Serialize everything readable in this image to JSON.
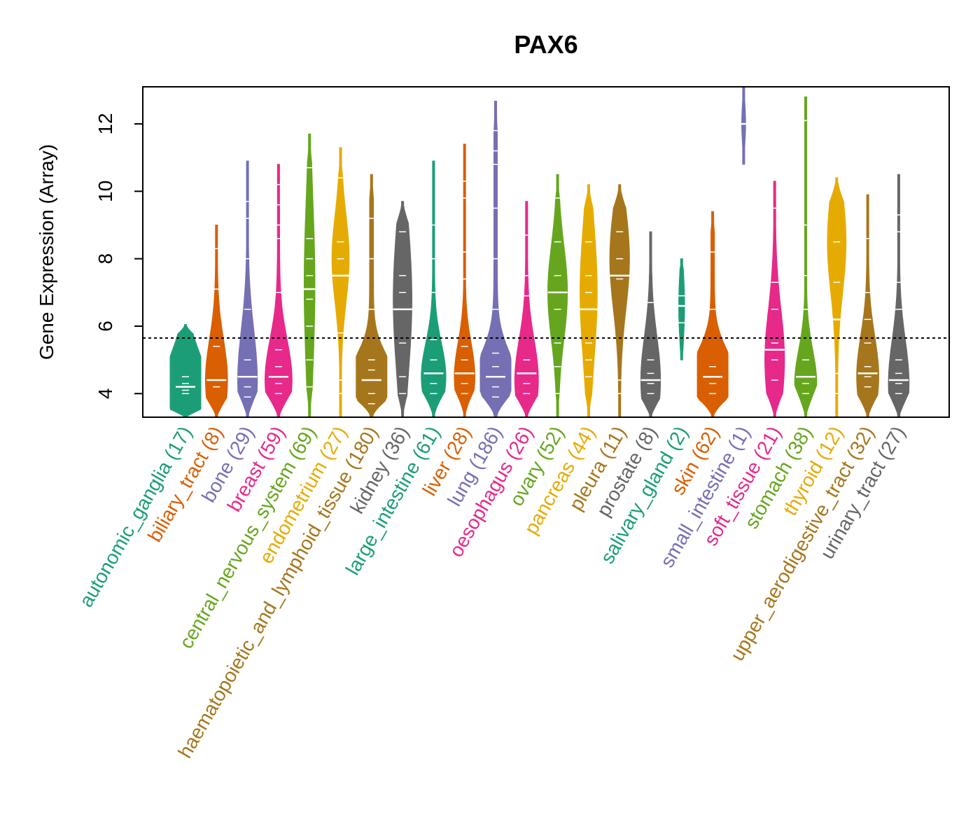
{
  "chart_data": {
    "type": "violin",
    "title": "PAX6",
    "xlabel": "",
    "ylabel": "Gene Expression (Array)",
    "ylim": [
      3.3,
      13.1
    ],
    "yticks": [
      4,
      6,
      8,
      10,
      12
    ],
    "reference_line": 5.65,
    "categories": [
      {
        "name": "autonomic_ganglia",
        "count": "(17)",
        "color": "#1b9e77",
        "median": 4.2,
        "min": 3.3,
        "max": 6.05,
        "mode": 4.2,
        "spread": 1.0,
        "width": 0.9,
        "marks": [
          4.0,
          4.1,
          4.2,
          4.2,
          4.3,
          4.5
        ]
      },
      {
        "name": "biliary_tract",
        "count": "(8)",
        "color": "#d95f02",
        "median": 4.4,
        "min": 3.3,
        "max": 9.0,
        "mode": 4.4,
        "spread": 1.2,
        "width": 0.45,
        "marks": [
          4.2,
          4.4,
          5.4,
          7.1,
          8.3
        ]
      },
      {
        "name": "bone",
        "count": "(29)",
        "color": "#7570b3",
        "median": 4.5,
        "min": 3.3,
        "max": 10.9,
        "mode": 4.4,
        "spread": 1.5,
        "width": 0.4,
        "marks": [
          3.9,
          4.2,
          4.5,
          5.0,
          6.5,
          8.0,
          9.2,
          9.7
        ]
      },
      {
        "name": "breast",
        "count": "(59)",
        "color": "#e7298a",
        "median": 4.5,
        "min": 3.3,
        "max": 10.8,
        "mode": 4.4,
        "spread": 1.2,
        "width": 0.55,
        "marks": [
          4.0,
          4.3,
          4.5,
          4.8,
          5.3,
          7.0,
          8.6,
          9.0,
          9.6,
          10.2
        ]
      },
      {
        "name": "central_nervous_system",
        "count": "(69)",
        "color": "#66a61e",
        "median": 7.1,
        "min": 3.3,
        "max": 11.7,
        "mode": 7.2,
        "spread": 2.5,
        "width": 0.22,
        "marks": [
          4.2,
          5.0,
          6.0,
          6.8,
          7.1,
          7.5,
          8.0,
          8.6,
          10.7
        ]
      },
      {
        "name": "endometrium",
        "count": "(27)",
        "color": "#e6ab02",
        "median": 7.5,
        "min": 3.3,
        "max": 11.3,
        "mode": 8.0,
        "spread": 1.3,
        "width": 0.35,
        "marks": [
          4.0,
          4.4,
          5.8,
          7.5,
          8.0,
          8.5,
          10.4
        ]
      },
      {
        "name": "haematopoietic_and_lymphoid_tissue",
        "count": "(180)",
        "color": "#a6761d",
        "median": 4.4,
        "min": 3.3,
        "max": 10.5,
        "mode": 4.3,
        "spread": 0.8,
        "width": 1.0,
        "marks": [
          3.7,
          4.0,
          4.4,
          4.7,
          5.0,
          6.5,
          8.0,
          9.2
        ]
      },
      {
        "name": "kidney",
        "count": "(36)",
        "color": "#666666",
        "median": 6.5,
        "min": 3.3,
        "max": 9.7,
        "mode": 6.8,
        "spread": 2.2,
        "width": 0.38,
        "marks": [
          4.0,
          4.5,
          5.5,
          6.5,
          7.0,
          7.5,
          8.8
        ]
      },
      {
        "name": "large_intestine",
        "count": "(61)",
        "color": "#1b9e77",
        "median": 4.6,
        "min": 3.3,
        "max": 10.9,
        "mode": 4.5,
        "spread": 1.0,
        "width": 0.5,
        "marks": [
          4.0,
          4.3,
          4.6,
          5.0,
          5.6,
          7.0,
          8.0,
          9.0
        ]
      },
      {
        "name": "liver",
        "count": "(28)",
        "color": "#d95f02",
        "median": 4.6,
        "min": 3.3,
        "max": 11.4,
        "mode": 4.5,
        "spread": 1.0,
        "width": 0.42,
        "marks": [
          4.0,
          4.3,
          4.6,
          5.0,
          5.4,
          7.4,
          8.2,
          9.8,
          10.3
        ]
      },
      {
        "name": "lung",
        "count": "(186)",
        "color": "#7570b3",
        "median": 4.5,
        "min": 3.3,
        "max": 12.7,
        "mode": 4.3,
        "spread": 0.9,
        "width": 0.9,
        "marks": [
          3.9,
          4.2,
          4.5,
          4.8,
          5.2,
          6.5,
          8.0,
          9.5,
          10.8,
          11.2,
          11.8,
          12.7
        ]
      },
      {
        "name": "oesophagus",
        "count": "(26)",
        "color": "#e7298a",
        "median": 4.6,
        "min": 3.3,
        "max": 9.7,
        "mode": 4.4,
        "spread": 1.2,
        "width": 0.48,
        "marks": [
          4.0,
          4.3,
          4.6,
          5.0,
          6.9,
          7.5,
          8.7
        ]
      },
      {
        "name": "ovary",
        "count": "(52)",
        "color": "#66a61e",
        "median": 7.0,
        "min": 3.3,
        "max": 10.5,
        "mode": 7.0,
        "spread": 1.4,
        "width": 0.4,
        "marks": [
          4.0,
          4.8,
          5.5,
          6.5,
          7.0,
          7.5,
          8.5,
          9.8
        ]
      },
      {
        "name": "pancreas",
        "count": "(44)",
        "color": "#e6ab02",
        "median": 6.5,
        "min": 3.3,
        "max": 10.2,
        "mode": 7.0,
        "spread": 2.0,
        "width": 0.35,
        "marks": [
          4.5,
          5.0,
          5.5,
          6.5,
          7.0,
          7.5,
          8.5
        ]
      },
      {
        "name": "pleura",
        "count": "(11)",
        "color": "#a6761d",
        "median": 7.5,
        "min": 3.3,
        "max": 10.2,
        "mode": 8.0,
        "spread": 1.5,
        "width": 0.4,
        "marks": [
          4.0,
          4.4,
          7.4,
          8.0,
          8.8
        ]
      },
      {
        "name": "prostate",
        "count": "(8)",
        "color": "#666666",
        "median": 4.4,
        "min": 3.3,
        "max": 8.8,
        "mode": 4.4,
        "spread": 1.3,
        "width": 0.4,
        "marks": [
          4.0,
          4.3,
          4.6,
          5.0,
          6.7
        ]
      },
      {
        "name": "salivary_gland",
        "count": "(2)",
        "color": "#1b9e77",
        "median": 6.6,
        "min": 5.0,
        "max": 8.0,
        "mode": 6.6,
        "spread": 1.0,
        "width": 0.12,
        "marks": [
          6.1,
          6.9
        ]
      },
      {
        "name": "skin",
        "count": "(62)",
        "color": "#d95f02",
        "median": 4.5,
        "min": 3.3,
        "max": 9.4,
        "mode": 4.5,
        "spread": 0.8,
        "width": 0.9,
        "marks": [
          4.0,
          4.3,
          4.5,
          4.8,
          6.5,
          8.2
        ]
      },
      {
        "name": "small_intestine",
        "count": "(1)",
        "color": "#7570b3",
        "median": 12.0,
        "min": 10.8,
        "max": 13.1,
        "mode": 12.0,
        "spread": 0.6,
        "width": 0.08,
        "marks": [
          12.0
        ]
      },
      {
        "name": "soft_tissue",
        "count": "(21)",
        "color": "#e7298a",
        "median": 5.3,
        "min": 3.3,
        "max": 10.3,
        "mode": 5.0,
        "spread": 1.5,
        "width": 0.4,
        "marks": [
          4.4,
          5.0,
          5.5,
          6.5,
          7.3,
          9.5
        ]
      },
      {
        "name": "stomach",
        "count": "(38)",
        "color": "#66a61e",
        "median": 4.5,
        "min": 3.3,
        "max": 12.8,
        "mode": 4.3,
        "spread": 1.0,
        "width": 0.45,
        "marks": [
          4.0,
          4.3,
          4.5,
          5.0,
          6.5,
          7.5,
          9.0,
          12.1
        ]
      },
      {
        "name": "thyroid",
        "count": "(12)",
        "color": "#e6ab02",
        "median": 6.2,
        "min": 3.3,
        "max": 10.4,
        "mode": 8.5,
        "spread": 1.5,
        "width": 0.38,
        "marks": [
          4.0,
          4.6,
          6.2,
          7.3,
          8.5
        ]
      },
      {
        "name": "upper_aerodigestive_tract",
        "count": "(32)",
        "color": "#a6761d",
        "median": 4.6,
        "min": 3.3,
        "max": 9.9,
        "mode": 4.5,
        "spread": 1.2,
        "width": 0.45,
        "marks": [
          4.2,
          4.5,
          4.8,
          5.5,
          6.2,
          7.0,
          8.6
        ]
      },
      {
        "name": "urinary_tract",
        "count": "(27)",
        "color": "#666666",
        "median": 4.4,
        "min": 3.3,
        "max": 10.5,
        "mode": 4.3,
        "spread": 1.3,
        "width": 0.42,
        "marks": [
          4.0,
          4.3,
          4.6,
          5.0,
          6.5,
          7.3,
          8.8,
          9.3
        ]
      }
    ]
  }
}
